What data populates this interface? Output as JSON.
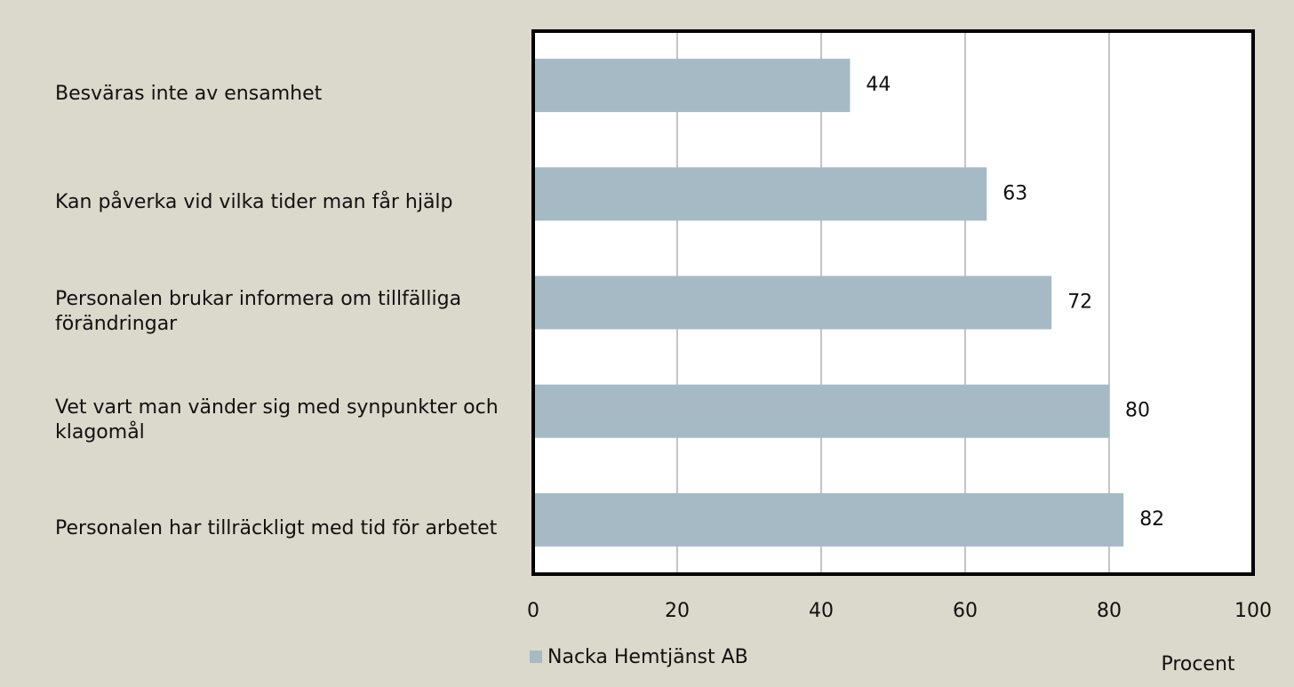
{
  "chart_data": {
    "type": "bar",
    "orientation": "horizontal",
    "categories": [
      "Besväras inte av ensamhet",
      "Kan påverka vid vilka tider man får hjälp",
      "Personalen brukar informera om tillfälliga förändringar",
      "Vet vart man vänder sig med synpunkter och klagomål",
      "Personalen har tillräckligt med tid för arbetet"
    ],
    "series": [
      {
        "name": "Nacka Hemtjänst AB",
        "color": "#a6bac6",
        "values": [
          44,
          63,
          72,
          80,
          82
        ]
      }
    ],
    "x_label": "Procent",
    "xlim": [
      0,
      100
    ],
    "xticks": [
      0,
      20,
      40,
      60,
      80,
      100
    ],
    "grid": true,
    "legend": "bottom"
  }
}
